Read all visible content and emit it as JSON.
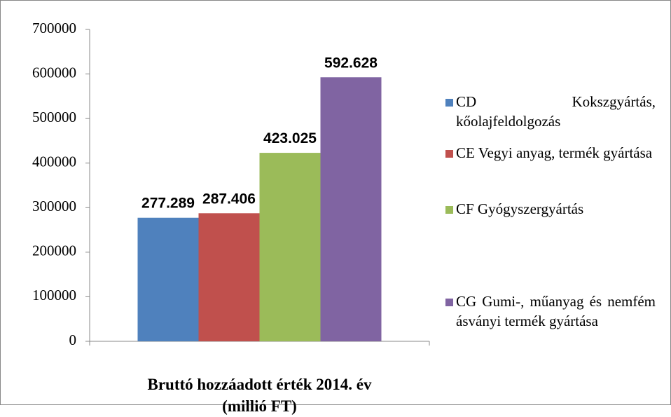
{
  "chart_data": {
    "type": "bar",
    "categories": [
      "Bruttó hozzáadott érték 2014. év (millió FT)"
    ],
    "series": [
      {
        "name": "CD  Kokszgyártás, kőolajfeldolgozás",
        "color": "#4f81bd",
        "values": [
          277289
        ],
        "value_labels": [
          "277.289"
        ]
      },
      {
        "name": "CE  Vegyi anyag, termék gyártása",
        "color": "#c0504d",
        "values": [
          287406
        ],
        "value_labels": [
          "287.406"
        ]
      },
      {
        "name": "CF  Gyógyszergyártás",
        "color": "#9bbb59",
        "values": [
          423025
        ],
        "value_labels": [
          "423.025"
        ]
      },
      {
        "name": "CG  Gumi-, műanyag és nemfém ásványi termék gyártása",
        "color": "#8064a2",
        "values": [
          592628
        ],
        "value_labels": [
          "592.628"
        ]
      }
    ],
    "ylim": [
      0,
      700000
    ],
    "yticks": [
      0,
      100000,
      200000,
      300000,
      400000,
      500000,
      600000,
      700000
    ],
    "legend": "right"
  }
}
